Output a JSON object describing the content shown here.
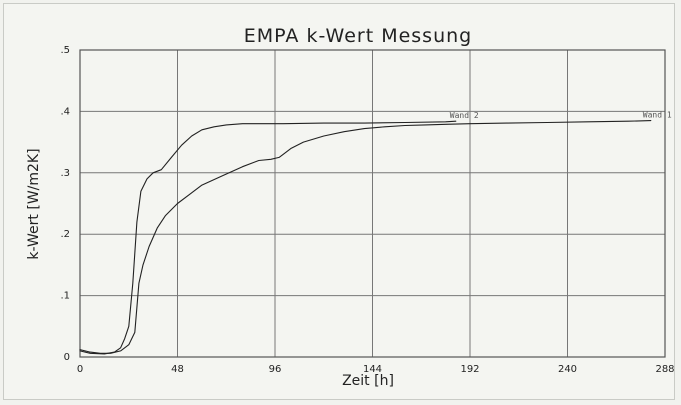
{
  "chart_data": {
    "type": "line",
    "title": "EMPA k-Wert Messung",
    "xlabel": "Zeit [h]",
    "ylabel": "k-Wert [W/m2K]",
    "xlim": [
      0,
      288
    ],
    "ylim": [
      0,
      0.5
    ],
    "x_ticks": [
      0,
      48,
      96,
      144,
      192,
      240,
      288
    ],
    "x_tick_labels": [
      "0",
      "48",
      "96",
      "144",
      "192",
      "240",
      "288"
    ],
    "y_ticks": [
      0,
      0.1,
      0.2,
      0.3,
      0.4,
      0.5
    ],
    "y_tick_labels": [
      "0",
      ".1",
      ".2",
      ".3",
      ".4",
      ".5"
    ],
    "grid": true,
    "series": [
      {
        "name": "Wand 2",
        "x": [
          0,
          5,
          12,
          17,
          20,
          22,
          24,
          26,
          28,
          30,
          33,
          36,
          40,
          45,
          50,
          55,
          60,
          66,
          72,
          80,
          90,
          100,
          120,
          140,
          160,
          180,
          185
        ],
        "y": [
          0.01,
          0.006,
          0.005,
          0.008,
          0.015,
          0.03,
          0.05,
          0.12,
          0.22,
          0.27,
          0.29,
          0.3,
          0.305,
          0.325,
          0.345,
          0.36,
          0.37,
          0.375,
          0.378,
          0.38,
          0.38,
          0.38,
          0.381,
          0.381,
          0.382,
          0.383,
          0.384
        ]
      },
      {
        "name": "Wand 1",
        "x": [
          0,
          5,
          10,
          15,
          20,
          24,
          27,
          29,
          31,
          34,
          38,
          42,
          48,
          54,
          60,
          70,
          80,
          88,
          94,
          98,
          100,
          104,
          110,
          120,
          130,
          140,
          150,
          160,
          170,
          180,
          192,
          210,
          230,
          250,
          270,
          281
        ],
        "y": [
          0.012,
          0.008,
          0.006,
          0.006,
          0.01,
          0.02,
          0.04,
          0.12,
          0.15,
          0.18,
          0.21,
          0.23,
          0.25,
          0.265,
          0.28,
          0.295,
          0.31,
          0.32,
          0.322,
          0.325,
          0.33,
          0.34,
          0.35,
          0.36,
          0.367,
          0.372,
          0.375,
          0.377,
          0.378,
          0.379,
          0.38,
          0.381,
          0.382,
          0.383,
          0.384,
          0.385
        ]
      }
    ]
  }
}
